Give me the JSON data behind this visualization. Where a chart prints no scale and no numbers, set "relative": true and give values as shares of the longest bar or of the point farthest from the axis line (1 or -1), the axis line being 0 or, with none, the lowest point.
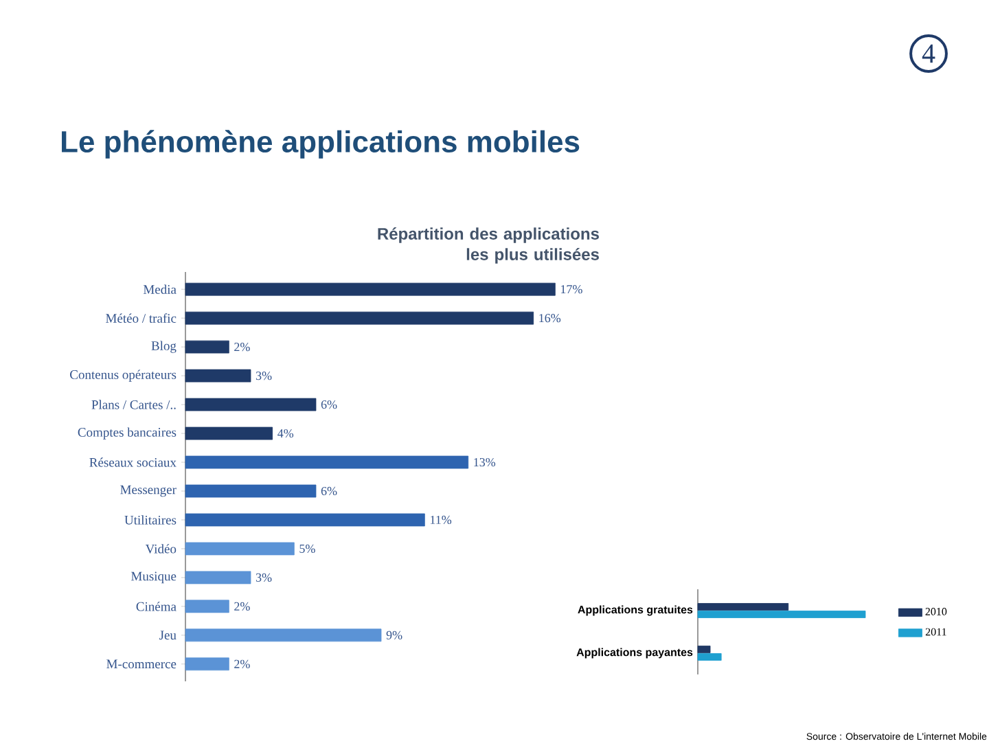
{
  "chart_data": [
    {
      "type": "bar",
      "orientation": "horizontal",
      "title": "Le phénomène applications mobiles",
      "subtitle": "Répartition des applications les plus utilisées",
      "categories": [
        "Media",
        "Météo / trafic",
        "Blog",
        "Contenus opérateurs",
        "Plans / Cartes /..",
        "Comptes bancaires",
        "Réseaux sociaux",
        "Messenger",
        "Utilitaires",
        "Vidéo",
        "Musique",
        "Cinéma",
        "Jeu",
        "M-commerce"
      ],
      "values": [
        17,
        16,
        2,
        3,
        6,
        4,
        13,
        6,
        11,
        5,
        3,
        2,
        9,
        2
      ],
      "value_labels": [
        "17%",
        "16%",
        "2%",
        "3%",
        "6%",
        "4%",
        "13%",
        "6%",
        "11%",
        "5%",
        "3%",
        "2%",
        "9%",
        "2%"
      ],
      "colors": [
        "#1f3a68",
        "#1f3a68",
        "#1f3a68",
        "#1f3a68",
        "#1f3a68",
        "#1f3a68",
        "#2e64b0",
        "#2e64b0",
        "#2e64b0",
        "#5b93d6",
        "#5b93d6",
        "#5b93d6",
        "#5b93d6",
        "#5b93d6"
      ],
      "annotations": [
        "4"
      ]
    },
    {
      "type": "bar",
      "orientation": "horizontal",
      "relative": true,
      "legend": "right",
      "categories": [
        "Applications gratuites",
        "Applications payantes"
      ],
      "series": [
        {
          "name": "2010",
          "color": "#1f3864",
          "values": [
            0.54,
            0.074
          ]
        },
        {
          "name": "2011",
          "color": "#1fa0d0",
          "values": [
            1,
            0.14
          ]
        }
      ],
      "annotations": [
        "Source : Observatoire de L'internet Mobile"
      ]
    }
  ]
}
